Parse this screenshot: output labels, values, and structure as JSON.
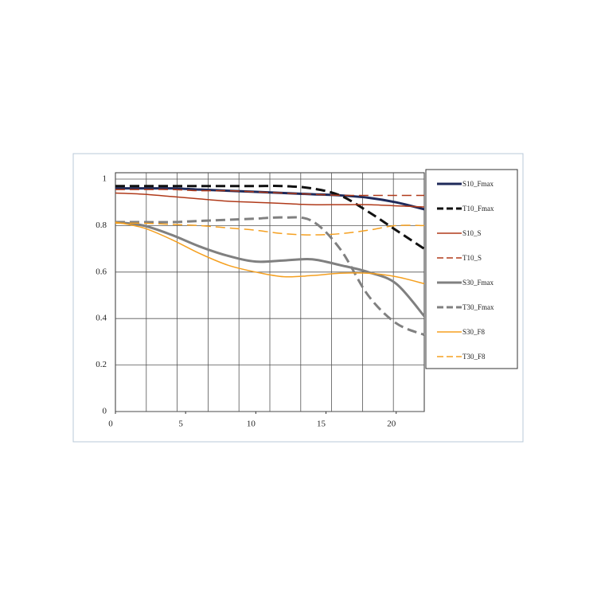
{
  "chart_data": {
    "type": "line",
    "x": [
      0,
      2,
      4,
      6,
      8,
      10,
      12,
      14,
      16,
      18,
      20,
      22
    ],
    "xlim": [
      0,
      22
    ],
    "xticks": [
      0,
      5,
      10,
      15,
      20
    ],
    "ylim": [
      0,
      1
    ],
    "yticks": [
      0,
      0.2,
      0.4,
      0.6,
      0.8,
      1
    ],
    "grid": true,
    "legend": "right",
    "series": [
      {
        "name": "S10_Fmax",
        "color": "#1f2a5a",
        "dashed": false,
        "line_width": 3,
        "values": [
          0.96,
          0.96,
          0.96,
          0.955,
          0.95,
          0.945,
          0.94,
          0.935,
          0.93,
          0.92,
          0.9,
          0.87
        ]
      },
      {
        "name": "T10_Fmax",
        "color": "#111111",
        "dashed": true,
        "line_width": 3,
        "values": [
          0.97,
          0.97,
          0.97,
          0.97,
          0.97,
          0.97,
          0.97,
          0.96,
          0.93,
          0.86,
          0.78,
          0.7
        ]
      },
      {
        "name": "S10_S",
        "color": "#b03a1a",
        "dashed": false,
        "line_width": 1.5,
        "values": [
          0.94,
          0.935,
          0.925,
          0.915,
          0.905,
          0.9,
          0.895,
          0.89,
          0.89,
          0.89,
          0.885,
          0.88
        ]
      },
      {
        "name": "T10_S",
        "color": "#b03a1a",
        "dashed": true,
        "line_width": 1.5,
        "values": [
          0.955,
          0.955,
          0.955,
          0.95,
          0.95,
          0.945,
          0.94,
          0.935,
          0.93,
          0.93,
          0.93,
          0.93
        ]
      },
      {
        "name": "S30_Fmax",
        "color": "#808080",
        "dashed": false,
        "line_width": 3,
        "values": [
          0.815,
          0.8,
          0.76,
          0.71,
          0.67,
          0.645,
          0.65,
          0.655,
          0.63,
          0.6,
          0.55,
          0.41
        ]
      },
      {
        "name": "T30_Fmax",
        "color": "#808080",
        "dashed": true,
        "line_width": 3,
        "values": [
          0.815,
          0.815,
          0.815,
          0.82,
          0.825,
          0.83,
          0.835,
          0.82,
          0.7,
          0.5,
          0.38,
          0.33
        ]
      },
      {
        "name": "S30_F8",
        "color": "#f5a020",
        "dashed": false,
        "line_width": 1.5,
        "values": [
          0.815,
          0.79,
          0.74,
          0.68,
          0.63,
          0.6,
          0.58,
          0.585,
          0.595,
          0.595,
          0.58,
          0.55
        ]
      },
      {
        "name": "T30_F8",
        "color": "#f5a020",
        "dashed": true,
        "line_width": 1.5,
        "values": [
          0.81,
          0.81,
          0.805,
          0.8,
          0.79,
          0.78,
          0.765,
          0.76,
          0.765,
          0.78,
          0.8,
          0.8
        ]
      }
    ]
  }
}
